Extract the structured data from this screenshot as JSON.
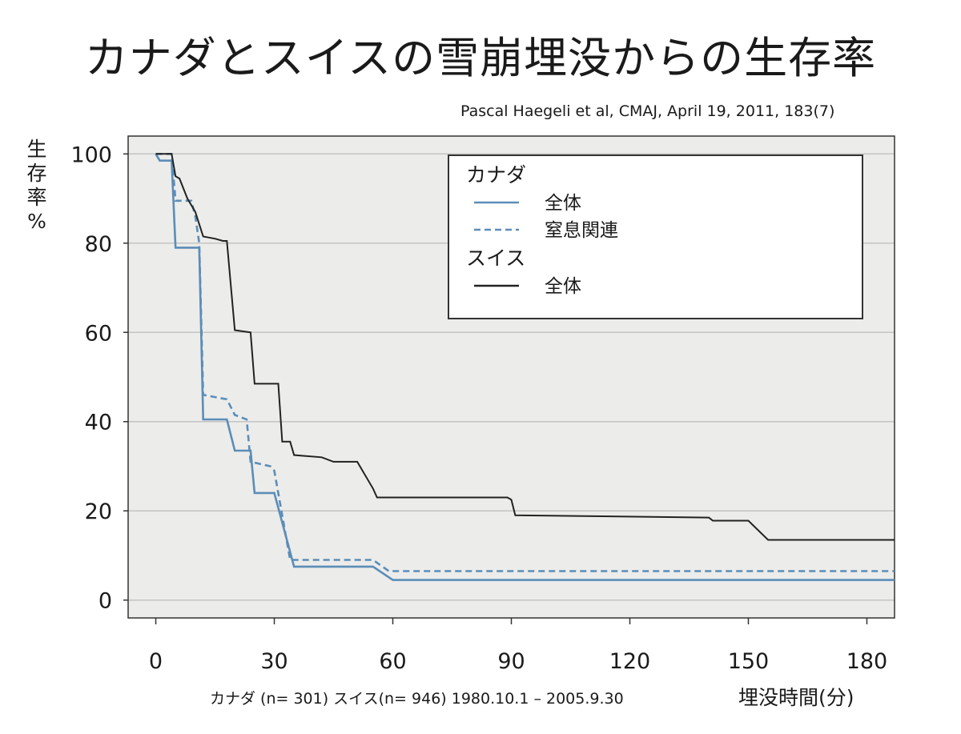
{
  "title": "カナダとスイスの雪崩埋没からの生存率",
  "citation": "Pascal Haegeli et al, CMAJ, April 19, 2011, 183(7)",
  "ylabel_chars": [
    "生",
    "存",
    "率",
    "%"
  ],
  "footnote": "カナダ (n= 301) スイス(n= 946) 1980.10.1 – 2005.9.30",
  "colors": {
    "canada": "#5b8db8",
    "swiss": "#222222",
    "plot_bg": "#ececea",
    "grid": "#c4c4c4"
  },
  "chart_data": {
    "type": "line",
    "title": "カナダとスイスの雪崩埋没からの生存率",
    "xlabel": "埋没時間(分)",
    "ylabel": "生存率 %",
    "xlim": [
      -7,
      187
    ],
    "ylim": [
      -4,
      104
    ],
    "xticks": [
      0,
      30,
      60,
      90,
      120,
      150,
      180
    ],
    "yticks": [
      0,
      20,
      40,
      60,
      80,
      100
    ],
    "grid": "horizontal",
    "legend": {
      "position": "top-right",
      "groups": [
        {
          "heading": "カナダ",
          "entries": [
            {
              "label": "全体",
              "style": "solid",
              "color": "#5b8db8"
            },
            {
              "label": "窒息関連",
              "style": "dashed",
              "color": "#5b8db8"
            }
          ]
        },
        {
          "heading": "スイス",
          "entries": [
            {
              "label": "全体",
              "style": "solid",
              "color": "#222222"
            }
          ]
        }
      ]
    },
    "series": [
      {
        "group": "カナダ",
        "name": "全体",
        "style": "solid",
        "color": "#5b8db8",
        "points": [
          [
            0,
            100
          ],
          [
            1,
            98.5
          ],
          [
            4,
            98.5
          ],
          [
            5,
            79
          ],
          [
            11,
            79
          ],
          [
            12,
            40.5
          ],
          [
            18,
            40.5
          ],
          [
            20,
            33.5
          ],
          [
            24,
            33.5
          ],
          [
            25,
            24
          ],
          [
            30,
            24
          ],
          [
            35,
            7.5
          ],
          [
            55,
            7.5
          ],
          [
            60,
            4.5
          ],
          [
            187,
            4.5
          ]
        ]
      },
      {
        "group": "カナダ",
        "name": "窒息関連",
        "style": "dashed",
        "color": "#5b8db8",
        "points": [
          [
            0,
            100
          ],
          [
            4,
            100
          ],
          [
            5,
            89.5
          ],
          [
            9,
            89.5
          ],
          [
            10,
            86
          ],
          [
            11,
            80
          ],
          [
            12,
            46
          ],
          [
            18,
            45
          ],
          [
            20,
            41.5
          ],
          [
            23,
            40.5
          ],
          [
            24,
            31
          ],
          [
            29,
            30
          ],
          [
            30,
            29
          ],
          [
            34,
            9
          ],
          [
            55,
            9
          ],
          [
            59,
            6.5
          ],
          [
            187,
            6.5
          ]
        ]
      },
      {
        "group": "スイス",
        "name": "全体",
        "style": "solid",
        "color": "#222222",
        "points": [
          [
            0,
            100
          ],
          [
            4,
            100
          ],
          [
            5,
            95
          ],
          [
            6,
            94.5
          ],
          [
            8,
            90
          ],
          [
            10,
            87
          ],
          [
            12,
            81.5
          ],
          [
            15,
            81
          ],
          [
            17,
            80.5
          ],
          [
            18,
            80.5
          ],
          [
            20,
            60.5
          ],
          [
            24,
            60
          ],
          [
            25,
            48.5
          ],
          [
            31,
            48.5
          ],
          [
            32,
            35.5
          ],
          [
            34,
            35.5
          ],
          [
            35,
            32.5
          ],
          [
            42,
            32
          ],
          [
            45,
            31
          ],
          [
            51,
            31
          ],
          [
            55,
            25
          ],
          [
            56,
            23
          ],
          [
            89,
            23
          ],
          [
            90,
            22.5
          ],
          [
            91,
            19
          ],
          [
            140,
            18.5
          ],
          [
            141,
            17.8
          ],
          [
            150,
            17.8
          ],
          [
            155,
            13.5
          ],
          [
            187,
            13.5
          ]
        ]
      }
    ]
  }
}
